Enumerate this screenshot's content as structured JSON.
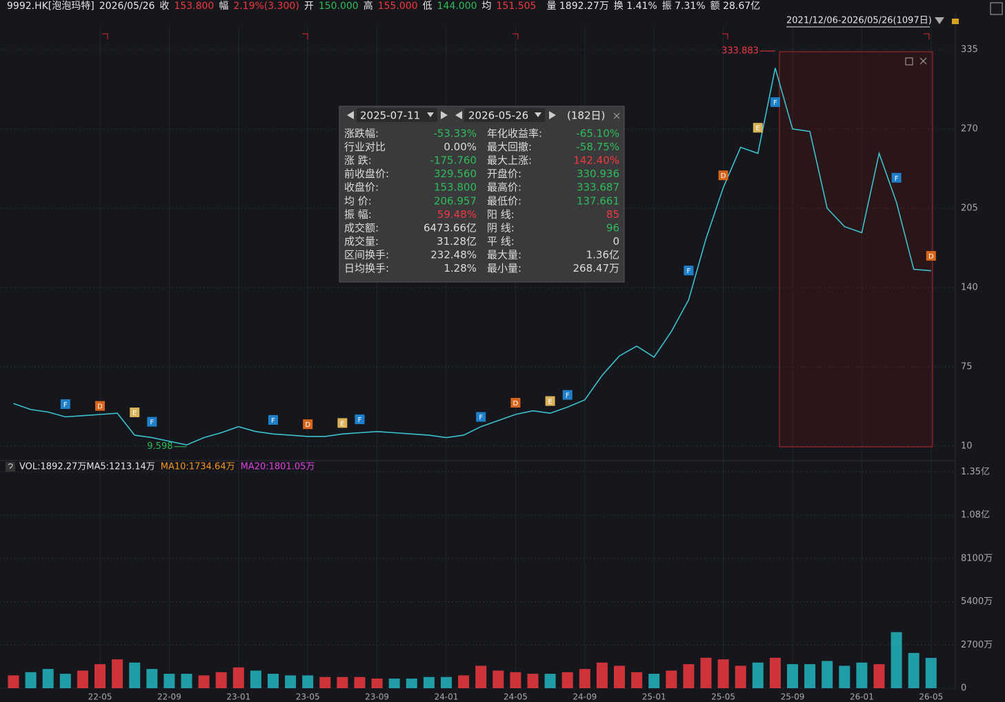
{
  "header": {
    "items": [
      {
        "text": "9992.HK[泡泡玛特]",
        "color": "#e6e6e6"
      },
      {
        "text": "2026/05/26",
        "color": "#e6e6e6"
      },
      {
        "text": "收",
        "color": "#e6e6e6"
      },
      {
        "text": "153.800",
        "color": "#f0383f"
      },
      {
        "text": "幅",
        "color": "#e6e6e6"
      },
      {
        "text": "2.19%(3.300)",
        "color": "#f0383f"
      },
      {
        "text": "开",
        "color": "#e6e6e6"
      },
      {
        "text": "150.000",
        "color": "#2dbd58"
      },
      {
        "text": "高",
        "color": "#e6e6e6"
      },
      {
        "text": "155.000",
        "color": "#f0383f"
      },
      {
        "text": "低",
        "color": "#e6e6e6"
      },
      {
        "text": "144.000",
        "color": "#2dbd58"
      },
      {
        "text": "均",
        "color": "#e6e6e6"
      },
      {
        "text": "151.505",
        "color": "#f0383f"
      },
      {
        "text": "量 1892.27万",
        "color": "#e6e6e6"
      },
      {
        "text": "换 1.41%",
        "color": "#e6e6e6"
      },
      {
        "text": "振 7.31%",
        "color": "#e6e6e6"
      },
      {
        "text": "额 28.67亿",
        "color": "#e6e6e6"
      }
    ],
    "range_label": "2021/12/06-2026/05/26(1097日)"
  },
  "panel": {
    "start": "2025-07-11",
    "end": "2026-05-26",
    "days": "(182日)",
    "rows": [
      [
        {
          "text": "涨跌幅:"
        },
        {
          "text": "-53.33%",
          "color": "#2dbd58"
        },
        {
          "text": "年化收益率:"
        },
        {
          "text": "-65.10%",
          "color": "#2dbd58"
        }
      ],
      [
        {
          "text": "行业对比"
        },
        {
          "text": "0.00%"
        },
        {
          "text": "最大回撤:"
        },
        {
          "text": "-58.75%",
          "color": "#2dbd58"
        }
      ],
      [
        {
          "text": "涨  跌:"
        },
        {
          "text": "-175.760",
          "color": "#2dbd58"
        },
        {
          "text": "最大上涨:"
        },
        {
          "text": "142.40%",
          "color": "#f0383f"
        }
      ],
      [
        {
          "text": "前收盘价:"
        },
        {
          "text": "329.560",
          "color": "#2dbd58"
        },
        {
          "text": "开盘价:"
        },
        {
          "text": "330.936",
          "color": "#2dbd58"
        }
      ],
      [
        {
          "text": "收盘价:"
        },
        {
          "text": "153.800",
          "color": "#2dbd58"
        },
        {
          "text": "最高价:"
        },
        {
          "text": "333.687",
          "color": "#2dbd58"
        }
      ],
      [
        {
          "text": "均  价:"
        },
        {
          "text": "206.957",
          "color": "#2dbd58"
        },
        {
          "text": "最低价:"
        },
        {
          "text": "137.661",
          "color": "#2dbd58"
        }
      ],
      [
        {
          "text": "振  幅:"
        },
        {
          "text": "59.48%",
          "color": "#f0383f"
        },
        {
          "text": "阳  线:"
        },
        {
          "text": "85",
          "color": "#f0383f"
        }
      ],
      [
        {
          "text": "成交额:"
        },
        {
          "text": "6473.66亿"
        },
        {
          "text": "阴  线:"
        },
        {
          "text": "96",
          "color": "#2dbd58"
        }
      ],
      [
        {
          "text": "成交量:"
        },
        {
          "text": "31.28亿"
        },
        {
          "text": "平  线:"
        },
        {
          "text": "0"
        }
      ],
      [
        {
          "text": "区间换手:"
        },
        {
          "text": "232.48%"
        },
        {
          "text": "最大量:"
        },
        {
          "text": "1.36亿"
        }
      ],
      [
        {
          "text": "日均换手:"
        },
        {
          "text": "1.28%"
        },
        {
          "text": "最小量:"
        },
        {
          "text": "268.47万"
        }
      ]
    ]
  },
  "chart_data": [
    {
      "type": "line",
      "color": "#3cc2cf",
      "grid": true,
      "categories": [
        null,
        null,
        null,
        null,
        null,
        "22-05",
        null,
        null,
        null,
        "22-09",
        null,
        null,
        null,
        "23-01",
        null,
        null,
        null,
        "23-05",
        null,
        null,
        null,
        "23-09",
        null,
        null,
        null,
        "24-01",
        null,
        null,
        null,
        "24-05",
        null,
        null,
        null,
        "24-09",
        null,
        null,
        null,
        "25-01",
        null,
        null,
        null,
        "25-05",
        null,
        null,
        null,
        "25-09",
        null,
        null,
        null,
        "26-01",
        null,
        null,
        null,
        "26-05"
      ],
      "values": [
        45,
        40,
        38,
        34,
        35,
        36,
        37,
        19,
        17,
        14,
        11,
        17,
        21,
        26,
        22,
        20,
        19,
        18,
        18,
        20,
        21,
        22,
        21,
        20,
        19,
        17,
        19,
        26,
        31,
        36,
        39,
        37,
        42,
        48,
        68,
        84,
        92,
        83,
        104,
        130,
        180,
        222,
        255,
        250,
        320,
        270,
        268,
        205,
        190,
        185,
        250,
        210,
        155,
        153.8
      ],
      "ylim": [
        0,
        354
      ],
      "yticks": [
        10,
        75,
        140,
        205,
        270,
        335
      ],
      "annotations": [
        {
          "value": 333.883,
          "date": "25-08",
          "color": "#f0383f"
        },
        {
          "value": 9.598,
          "date": "22-10",
          "color": "#2dbd58"
        }
      ],
      "event_colors": {
        "F": "#1f7fc9",
        "D": "#d9641b",
        "E": "#d9b25a"
      },
      "events": [
        {
          "label": "F",
          "date": "22-03",
          "value": 44.5
        },
        {
          "label": "D",
          "date": "22-05",
          "value": 43
        },
        {
          "label": "E",
          "date": "22-07",
          "value": 37.7
        },
        {
          "label": "F",
          "date": "22-08",
          "value": 30
        },
        {
          "label": "F",
          "date": "23-03",
          "value": 31.5
        },
        {
          "label": "D",
          "date": "23-05",
          "value": 28
        },
        {
          "label": "E",
          "date": "23-07",
          "value": 29
        },
        {
          "label": "F",
          "date": "23-08",
          "value": 32
        },
        {
          "label": "F",
          "date": "24-03",
          "value": 34
        },
        {
          "label": "D",
          "date": "24-05",
          "value": 45.6
        },
        {
          "label": "E",
          "date": "24-07",
          "value": 47
        },
        {
          "label": "F",
          "date": "24-08",
          "value": 52
        },
        {
          "label": "F",
          "date": "25-03",
          "value": 154
        },
        {
          "label": "D",
          "date": "25-05",
          "value": 232
        },
        {
          "label": "E",
          "date": "25-07",
          "value": 271
        },
        {
          "label": "F",
          "date": "25-08",
          "value": 292
        },
        {
          "label": "F",
          "date": "26-03",
          "value": 230
        },
        {
          "label": "D",
          "date": "26-05",
          "value": 166
        }
      ]
    },
    {
      "type": "bar",
      "up_color": "#f0383f",
      "down_color": "#22b5bf",
      "values": [
        800,
        1000,
        1200,
        900,
        1100,
        1500,
        1800,
        1600,
        1200,
        900,
        900,
        800,
        1000,
        1300,
        1100,
        900,
        800,
        800,
        700,
        700,
        700,
        600,
        600,
        600,
        700,
        700,
        800,
        1400,
        1100,
        1000,
        900,
        900,
        1000,
        1200,
        1600,
        1400,
        1000,
        900,
        1100,
        1500,
        1900,
        1800,
        1400,
        1600,
        1900,
        1500,
        1500,
        1700,
        1400,
        1600,
        1500,
        3500,
        2200,
        1892.27
      ],
      "ylim": [
        0,
        14200
      ],
      "yticks": [
        0,
        {
          "value": 2700,
          "label": "2700万"
        },
        {
          "value": 5400,
          "label": "5400万"
        },
        {
          "value": 8100,
          "label": "8100万"
        },
        {
          "value": 10800,
          "label": "1.08亿"
        },
        {
          "value": 13500,
          "label": "1.35亿"
        }
      ],
      "legend": [
        {
          "text": "VOL:1892.27万MA5:1213.14万",
          "color": "#e6e6e6"
        },
        {
          "text": "MA10:1734.64万",
          "color": "#f7931e"
        },
        {
          "text": "MA20:1801.05万",
          "color": "#e040e0"
        }
      ]
    }
  ]
}
